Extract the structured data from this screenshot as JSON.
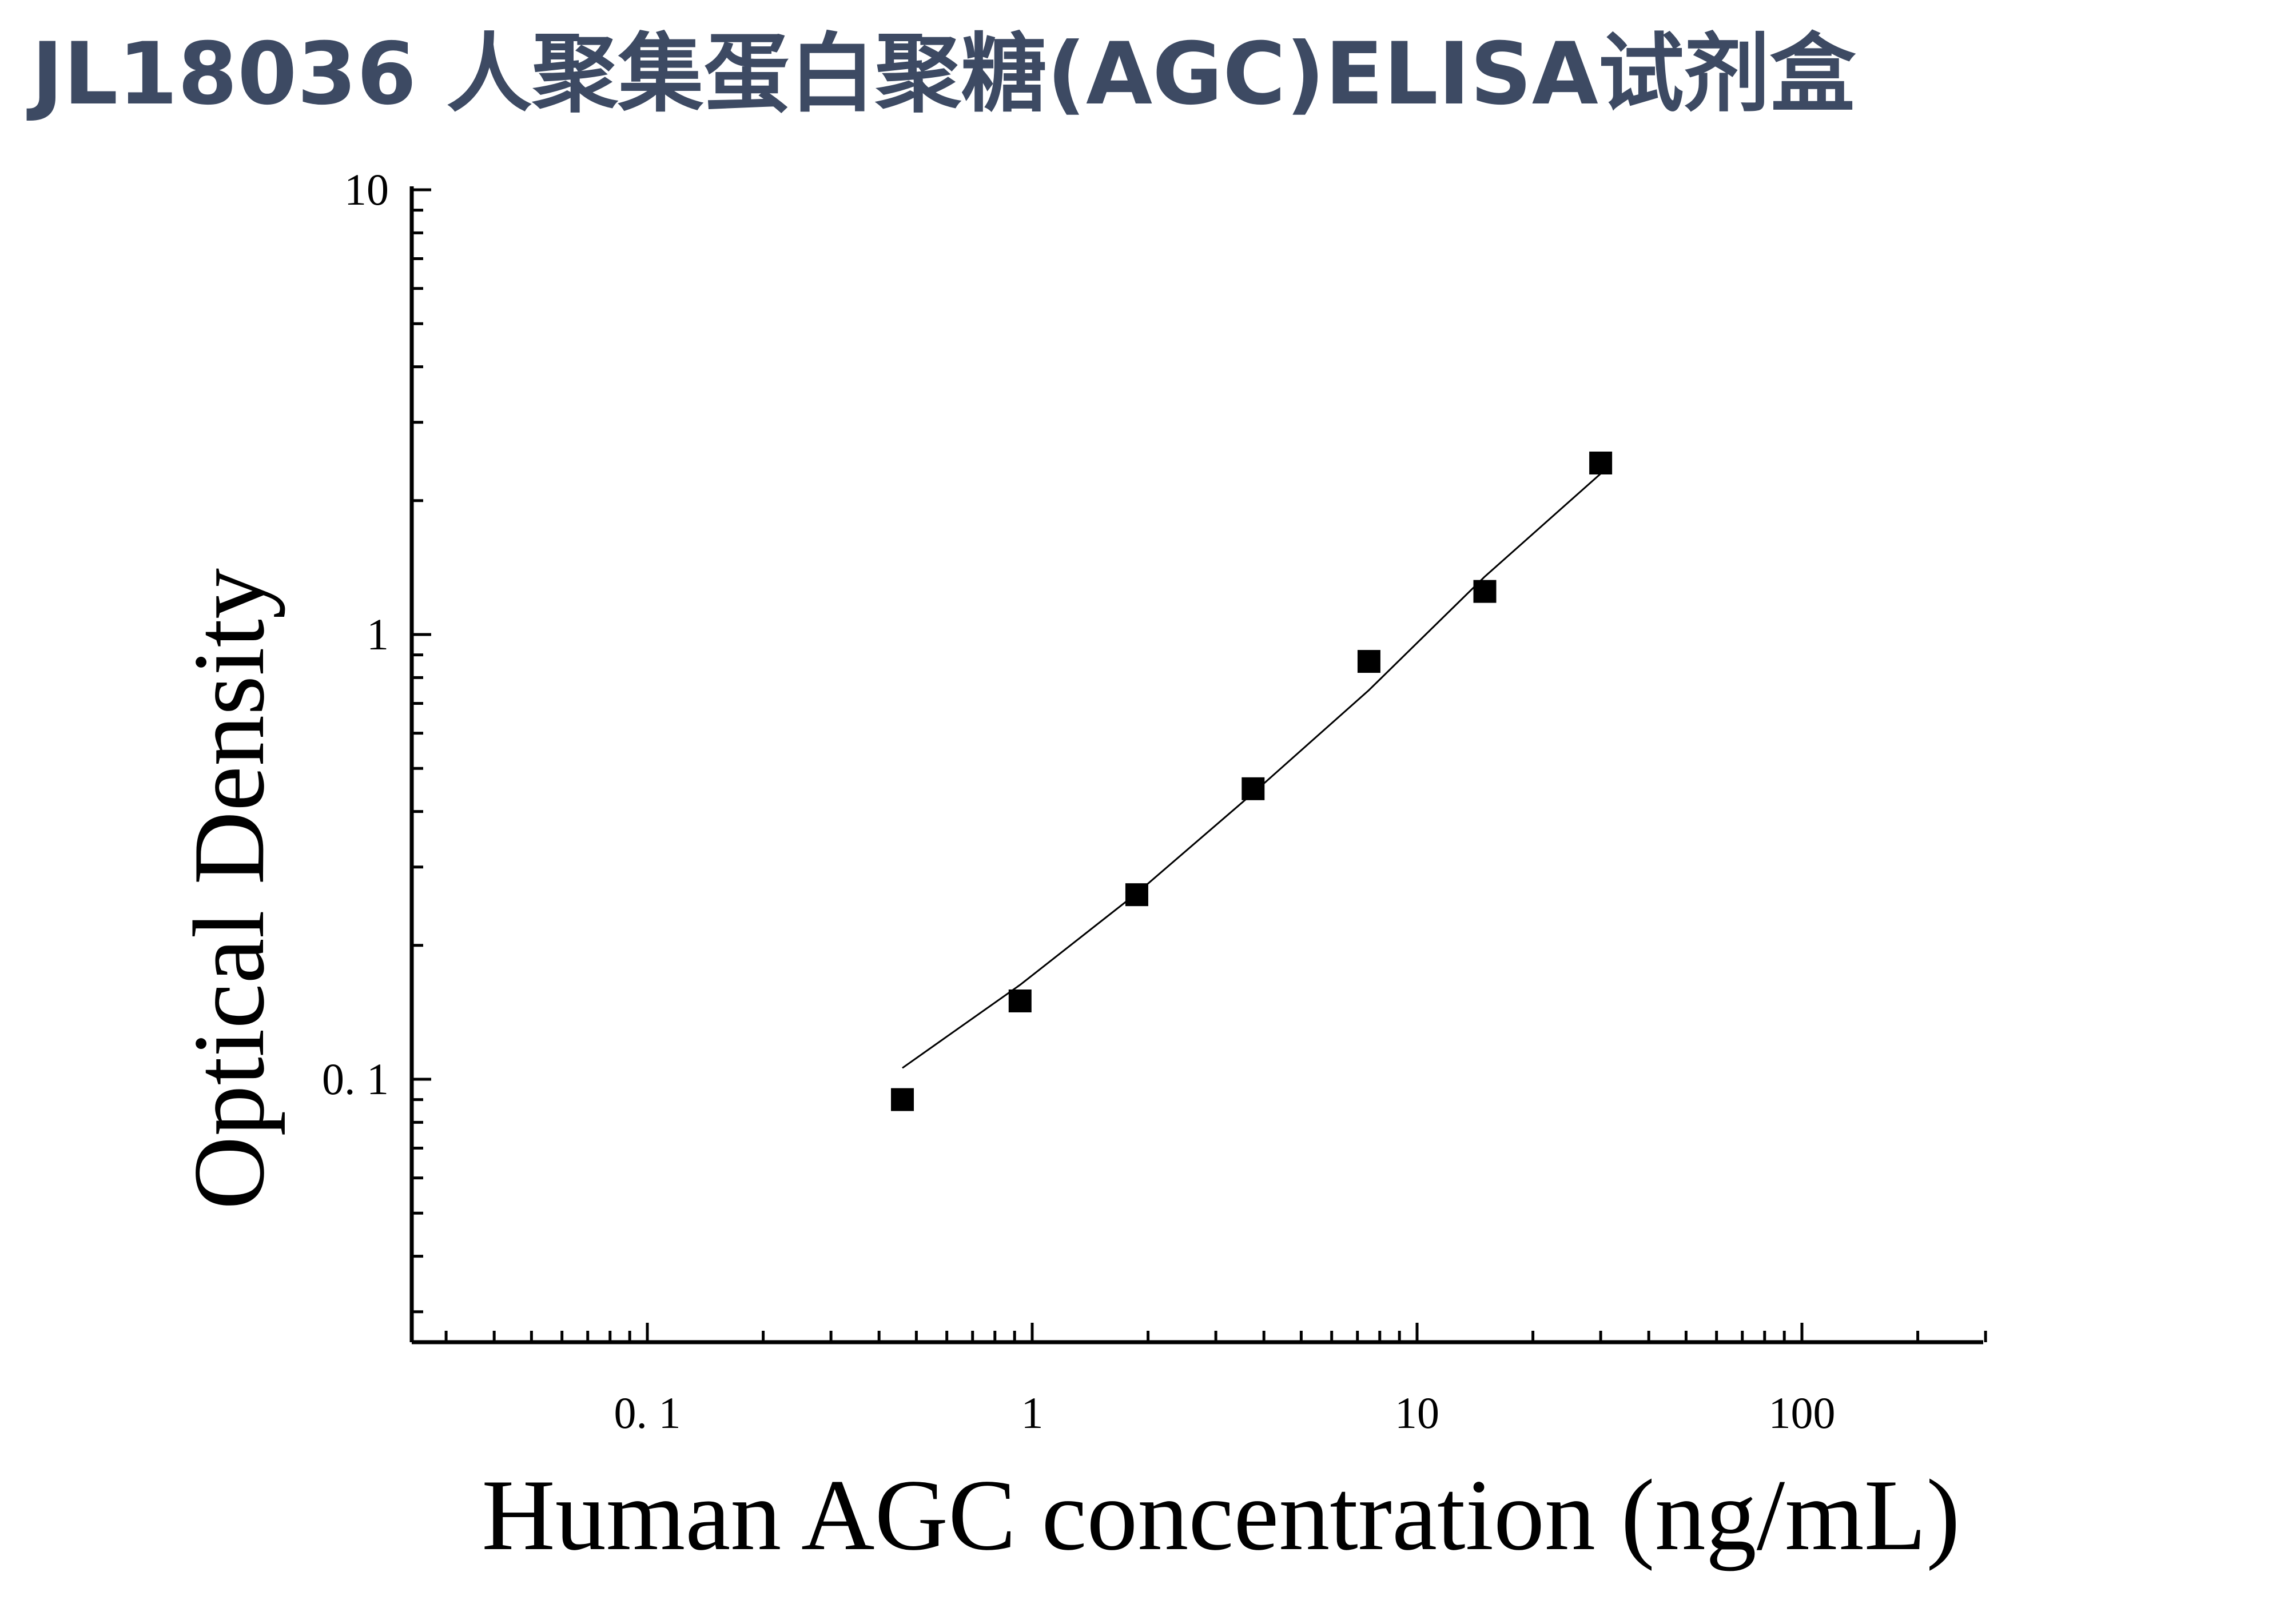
{
  "title": "JL18036 人聚集蛋白聚糖(AGC)ELISA试剂盒",
  "chart_data": {
    "type": "scatter",
    "xlabel": "Human AGC concentration (ng/mL)",
    "ylabel": "Optical Density",
    "xscale": "log",
    "yscale": "log",
    "xlim": [
      0.025,
      300
    ],
    "ylim": [
      0.025,
      10
    ],
    "x_ticks": [
      {
        "value": 0.1,
        "label": "0. 1"
      },
      {
        "value": 1,
        "label": "1"
      },
      {
        "value": 10,
        "label": "10"
      },
      {
        "value": 100,
        "label": "100"
      }
    ],
    "y_ticks": [
      {
        "value": 0.1,
        "label": "0. 1"
      },
      {
        "value": 1,
        "label": "1"
      },
      {
        "value": 10,
        "label": "10"
      }
    ],
    "points": {
      "x": [
        0.46,
        0.93,
        1.87,
        3.75,
        7.5,
        15,
        30
      ],
      "y": [
        0.09,
        0.15,
        0.26,
        0.45,
        0.87,
        1.25,
        2.43
      ]
    },
    "fit_curve": {
      "x": [
        0.46,
        0.93,
        1.87,
        3.75,
        7.5,
        15,
        30
      ],
      "y": [
        0.106,
        0.163,
        0.262,
        0.44,
        0.75,
        1.35,
        2.3
      ]
    },
    "marker": "square",
    "grid": false,
    "legend": "none",
    "colors": {
      "title": "#3d4a63",
      "marks": "#000000"
    }
  }
}
